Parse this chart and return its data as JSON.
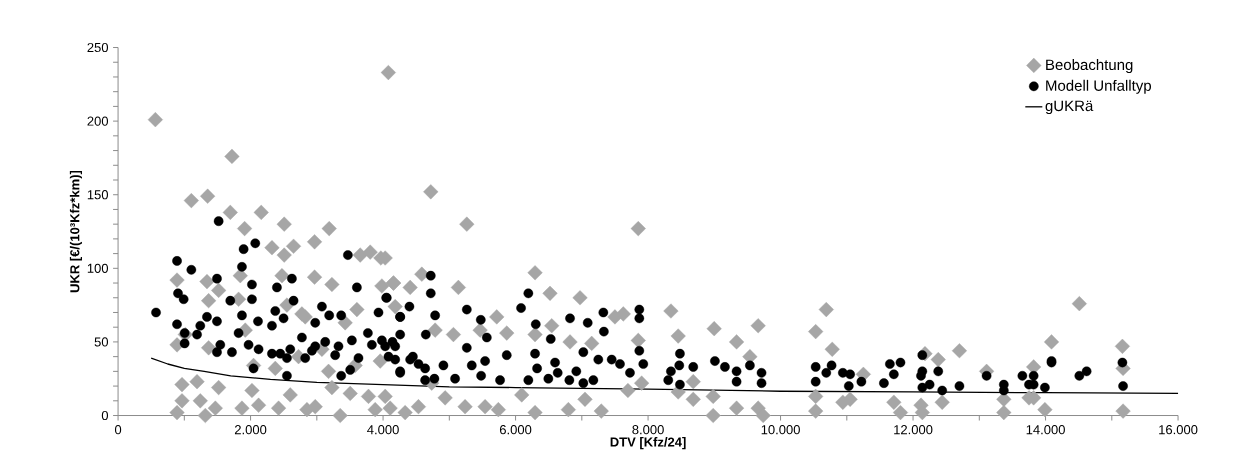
{
  "chart_data": {
    "type": "scatter",
    "xlabel": "DTV [Kfz/24]",
    "ylabel": "UKR [€/(10³Kfz*km)]",
    "xlim": [
      0,
      16000
    ],
    "ylim": [
      0,
      250
    ],
    "xticks": [
      0,
      {
        "value": 1000,
        "label": null
      },
      {
        "value": 2000,
        "label": "2.000"
      },
      {
        "value": 3000,
        "label": null
      },
      {
        "value": 4000,
        "label": "4.000"
      },
      {
        "value": 5000,
        "label": null
      },
      {
        "value": 6000,
        "label": "6.000"
      },
      {
        "value": 7000,
        "label": null
      },
      {
        "value": 8000,
        "label": "8.000"
      },
      {
        "value": 9000,
        "label": null
      },
      {
        "value": 10000,
        "label": "10.000"
      },
      {
        "value": 11000,
        "label": null
      },
      {
        "value": 12000,
        "label": "12.000"
      },
      {
        "value": 13000,
        "label": null
      },
      {
        "value": 14000,
        "label": "14.000"
      },
      {
        "value": 15000,
        "label": null
      },
      {
        "value": 16000,
        "label": "16.000"
      }
    ],
    "yticks": [
      0,
      {
        "value": 10,
        "label": null
      },
      {
        "value": 20,
        "label": null
      },
      {
        "value": 30,
        "label": null
      },
      {
        "value": 40,
        "label": null
      },
      50,
      {
        "value": 60,
        "label": null
      },
      {
        "value": 70,
        "label": null
      },
      {
        "value": 80,
        "label": null
      },
      {
        "value": 90,
        "label": null
      },
      100,
      {
        "value": 110,
        "label": null
      },
      {
        "value": 120,
        "label": null
      },
      {
        "value": 130,
        "label": null
      },
      {
        "value": 140,
        "label": null
      },
      150,
      {
        "value": 160,
        "label": null
      },
      {
        "value": 170,
        "label": null
      },
      {
        "value": 180,
        "label": null
      },
      {
        "value": 190,
        "label": null
      },
      200,
      {
        "value": 210,
        "label": null
      },
      {
        "value": 220,
        "label": null
      },
      {
        "value": 230,
        "label": null
      },
      {
        "value": 240,
        "label": null
      },
      250
    ],
    "legend": "top right",
    "grid": false,
    "series": [
      {
        "name": "Beobachtung",
        "type": "scatter",
        "marker": "diamond",
        "color": "#a6a6a6",
        "x": [
          4080,
          563,
          1719,
          1106,
          1352,
          1694,
          2161,
          1910,
          2508,
          3187,
          2966,
          2323,
          2649,
          2508,
          3655,
          3806,
          3967,
          890,
          1342,
          1845,
          2966,
          3228,
          3982,
          4157,
          2474,
          1518,
          890,
          1015,
          1367,
          1367,
          1819,
          2825,
          2549,
          3605,
          4183,
          3077,
          965,
          965,
          890,
          1192,
          1241,
          1317,
          1518,
          1468,
          1870,
          2021,
          2121,
          2423,
          2599,
          2851,
          2976,
          3228,
          3353,
          3504,
          3780,
          3881,
          4107,
          2045,
          2373,
          2724,
          3177,
          3579,
          3957,
          1920,
          2775,
          3428,
          4720,
          5264,
          7852,
          6294,
          4032,
          4157,
          4409,
          4585,
          5137,
          6520,
          6973,
          5716,
          5867,
          5062,
          6294,
          6822,
          7500,
          7626,
          7852,
          8345,
          8455,
          8998,
          9336,
          9662,
          9537,
          7903,
          8682,
          8682,
          8983,
          8983,
          9336,
          9662,
          9738,
          8455,
          7696,
          7294,
          7048,
          6797,
          6294,
          6093,
          5740,
          5540,
          5238,
          4937,
          4534,
          4333,
          4734,
          4032,
          7149,
          6546,
          5465,
          4786,
          10530,
          10690,
          10780,
          10530,
          10530,
          10940,
          11050,
          11250,
          11710,
          11810,
          12180,
          12380,
          12120,
          12140,
          12440,
          12700,
          13110,
          13370,
          13370,
          13750,
          13820,
          13820,
          13990,
          14090,
          14510,
          15160,
          15170,
          15170
        ],
        "values": [
          233,
          201,
          176,
          146,
          149,
          138,
          138,
          127,
          130,
          127,
          118,
          114,
          115,
          109,
          109,
          111,
          107,
          92,
          91,
          95,
          94,
          89,
          88,
          90,
          95,
          85,
          48,
          55,
          78,
          46,
          79,
          67,
          75,
          72,
          74,
          45,
          21,
          10,
          2,
          23,
          10,
          0,
          19,
          5,
          5,
          17,
          7,
          5,
          14,
          4,
          6,
          19,
          0,
          15,
          13,
          4,
          5,
          34,
          32,
          40,
          30,
          34,
          37,
          58,
          69,
          63,
          152,
          130,
          127,
          97,
          107,
          90,
          87,
          96,
          87,
          83,
          80,
          67,
          56,
          55,
          55,
          50,
          67,
          69,
          51,
          71,
          54,
          59,
          50,
          61,
          40,
          22,
          23,
          11,
          13,
          0,
          5,
          5,
          0,
          16,
          17,
          3,
          11,
          4,
          2,
          14,
          4,
          6,
          6,
          12,
          6,
          2,
          22,
          13,
          49,
          61,
          58,
          58,
          57,
          72,
          45,
          13,
          3,
          9,
          11,
          28,
          9,
          2,
          42,
          38,
          7,
          2,
          9,
          44,
          30,
          11,
          2,
          12,
          33,
          12,
          4,
          50,
          76,
          47,
          32,
          3
        ]
      },
      {
        "name": "Modell Unfalltyp",
        "type": "scatter",
        "marker": "circle",
        "color": "#000000",
        "x": [
          573,
          890,
          1106,
          1518,
          1895,
          2071,
          1870,
          3469,
          905,
          990,
          1493,
          1694,
          2021,
          2021,
          2398,
          2624,
          2649,
          2373,
          3077,
          3605,
          4047,
          4258,
          3931,
          3368,
          3187,
          2976,
          2498,
          2112,
          1870,
          1342,
          1493,
          1241,
          890,
          1005,
          1192,
          1005,
          1543,
          1719,
          1493,
          1819,
          1970,
          2121,
          2323,
          2448,
          2323,
          2549,
          2599,
          2775,
          2825,
          2976,
          3127,
          3327,
          3529,
          3771,
          3831,
          3982,
          4142,
          2045,
          2549,
          3368,
          3504,
          2926,
          3277,
          3629,
          4082,
          4258,
          4720,
          4720,
          4786,
          4398,
          4258,
          4056,
          4645,
          4258,
          4183,
          4183,
          4409,
          4635,
          4258,
          4635,
          4775,
          4911,
          5087,
          5264,
          5475,
          5566,
          5264,
          5339,
          5540,
          5480,
          5766,
          5867,
          6083,
          6193,
          6305,
          6531,
          6294,
          6325,
          6193,
          6495,
          6636,
          6596,
          6812,
          6822,
          6917,
          7023,
          7023,
          7089,
          7174,
          7249,
          7325,
          7333,
          7451,
          7576,
          7727,
          7868,
          7868,
          7868,
          7928,
          8345,
          8305,
          8481,
          8471,
          8481,
          8682,
          9009,
          9160,
          9336,
          9336,
          9537,
          9713,
          9713,
          4032,
          4450,
          4535,
          10530,
          10530,
          10690,
          10770,
          10940,
          11050,
          11030,
          11220,
          11560,
          11650,
          11710,
          11810,
          12140,
          12140,
          12120,
          12140,
          12250,
          12380,
          12440,
          12700,
          13110,
          13370,
          13370,
          13650,
          13750,
          13820,
          13820,
          13990,
          14090,
          14090,
          14510,
          14620,
          15160,
          15170
        ],
        "values": [
          70,
          105,
          99,
          132,
          113,
          117,
          101,
          109,
          83,
          79,
          93,
          78,
          89,
          79,
          87,
          93,
          78,
          71,
          74,
          87,
          80,
          67,
          70,
          68,
          68,
          63,
          66,
          64,
          68,
          67,
          64,
          61,
          62,
          56,
          55,
          49,
          48,
          43,
          43,
          56,
          48,
          45,
          42,
          42,
          61,
          39,
          45,
          53,
          39,
          47,
          50,
          47,
          51,
          56,
          48,
          51,
          50,
          32,
          27,
          27,
          31,
          44,
          41,
          39,
          40,
          30,
          95,
          83,
          68,
          74,
          67,
          80,
          55,
          55,
          47,
          38,
          38,
          32,
          29,
          24,
          25,
          34,
          25,
          72,
          65,
          53,
          46,
          34,
          37,
          27,
          24,
          41,
          73,
          83,
          62,
          52,
          42,
          32,
          24,
          25,
          29,
          36,
          24,
          66,
          30,
          43,
          22,
          63,
          24,
          38,
          70,
          57,
          38,
          35,
          29,
          72,
          66,
          44,
          35,
          30,
          24,
          42,
          34,
          21,
          33,
          37,
          33,
          30,
          23,
          34,
          29,
          22,
          47,
          40,
          35,
          33,
          23,
          29,
          34,
          29,
          28,
          20,
          23,
          22,
          35,
          28,
          36,
          41,
          30,
          27,
          19,
          21,
          30,
          17,
          20,
          27,
          21,
          17,
          27,
          21,
          27,
          21,
          19,
          37,
          36,
          27,
          30,
          36,
          20
        ]
      },
      {
        "name": "gUKRä",
        "type": "line",
        "marker": "none",
        "line_style": "solid",
        "color": "#000000",
        "x": [
          500,
          750,
          1000,
          1300,
          1700,
          2300,
          3000,
          4000,
          5000,
          6000,
          8000,
          10000,
          12000,
          14000,
          16000
        ],
        "values": [
          39,
          35,
          32,
          30,
          27,
          24.5,
          22.5,
          21,
          19.5,
          19,
          18,
          16.5,
          16,
          15.5,
          15
        ]
      }
    ]
  }
}
